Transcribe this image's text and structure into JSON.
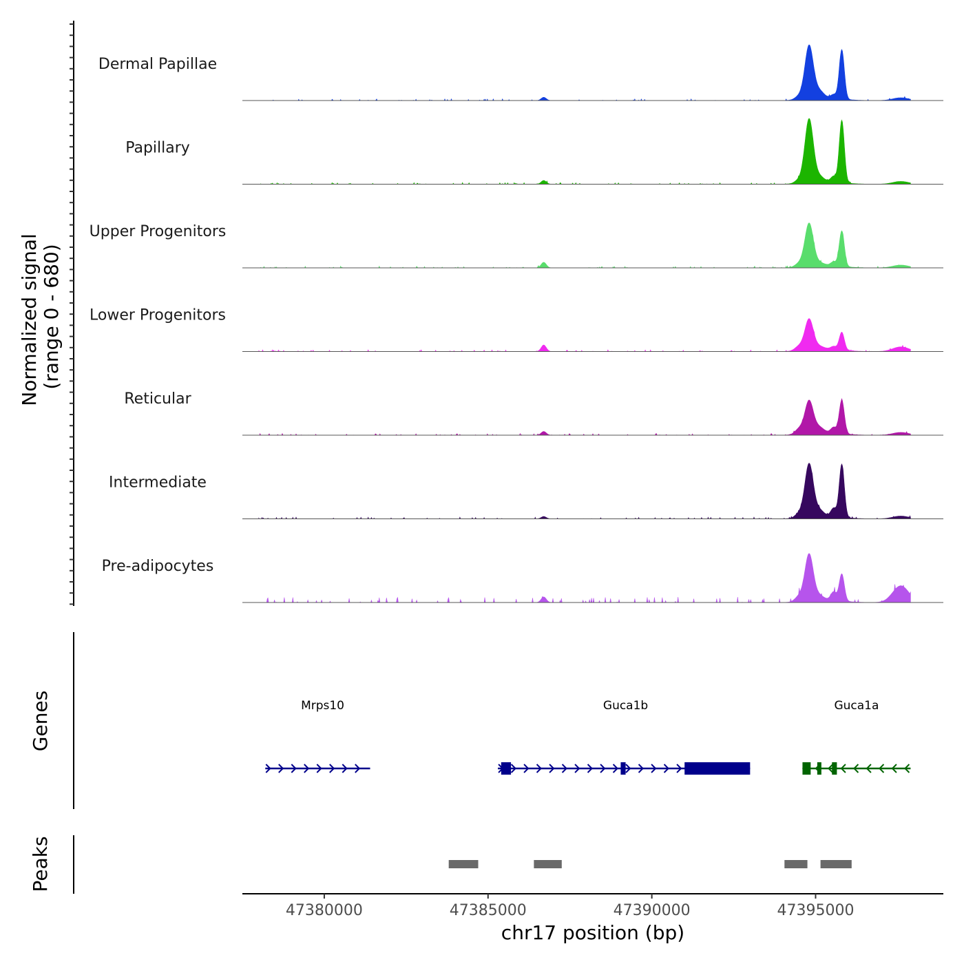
{
  "chart_data": {
    "type": "area",
    "title": "",
    "chromosome": "chr17",
    "xlabel": "chr17 position (bp)",
    "xlim": [
      47377500,
      47398900
    ],
    "xticks": [
      47380000,
      47385000,
      47390000,
      47395000
    ],
    "xtick_labels": [
      "47380000",
      "47385000",
      "47390000",
      "47395000"
    ],
    "coverage": {
      "ylabel": "Normalized signal\n(range 0 - 680)",
      "ylabel_lines": [
        "Normalized signal",
        "(range 0 - 680)"
      ],
      "ylim": [
        0,
        680
      ],
      "peak_sites": [
        {
          "center": 47386700,
          "width": 110
        },
        {
          "center": 47394500,
          "width": 180
        },
        {
          "center": 47395100,
          "width": 200
        },
        {
          "center": 47395550,
          "width": 120
        },
        {
          "center": 47395800,
          "width": 110
        },
        {
          "center": 47394800,
          "width": 180
        },
        {
          "center": 47397600,
          "width": 350
        }
      ],
      "tracks": [
        {
          "name": "Dermal Papillae",
          "color": "#1340E0",
          "peaks": [
            35,
            40,
            80,
            40,
            530,
            570,
            30
          ]
        },
        {
          "name": "Papillary",
          "color": "#1CB500",
          "peaks": [
            40,
            40,
            60,
            60,
            670,
            680,
            30
          ]
        },
        {
          "name": "Upper Progenitors",
          "color": "#59DD6C",
          "peaks": [
            60,
            40,
            30,
            40,
            380,
            460,
            30
          ]
        },
        {
          "name": "Lower Progenitors",
          "color": "#F02AF0",
          "peaks": [
            70,
            50,
            30,
            30,
            190,
            330,
            50
          ]
        },
        {
          "name": "Reticular",
          "color": "#B117A8",
          "peaks": [
            40,
            60,
            60,
            60,
            360,
            350,
            30
          ]
        },
        {
          "name": "Intermediate",
          "color": "#36085E",
          "peaks": [
            25,
            50,
            70,
            90,
            570,
            570,
            30
          ]
        },
        {
          "name": "Pre-adipocytes",
          "color": "#B654EC",
          "peaks": [
            60,
            60,
            50,
            90,
            290,
            500,
            180
          ]
        }
      ]
    },
    "genes": {
      "label": "Genes",
      "items": [
        {
          "name": "Mrps10",
          "start": 47378200,
          "end": 47381400,
          "strand": "+",
          "color": "#00008B",
          "exons": [],
          "label_pos": 47379950
        },
        {
          "name": "Guca1b",
          "start": 47385300,
          "end": 47393000,
          "strand": "+",
          "color": "#00008B",
          "exons": [
            [
              47385400,
              47385700
            ],
            [
              47389050,
              47389200
            ],
            [
              47391000,
              47393000
            ]
          ],
          "label_pos": 47389200
        },
        {
          "name": "Guca1a",
          "start": 47394600,
          "end": 47397900,
          "strand": "-",
          "color": "#006400",
          "exons": [
            [
              47394600,
              47394850
            ],
            [
              47395050,
              47395100
            ],
            [
              47395500,
              47395650
            ]
          ],
          "label_pos": 47396250
        }
      ]
    },
    "peaks": {
      "label": "Peaks",
      "color": "#696969",
      "regions": [
        [
          47383800,
          47384700
        ],
        [
          47386400,
          47387250
        ],
        [
          47394050,
          47394750
        ],
        [
          47395150,
          47396100
        ]
      ]
    }
  }
}
